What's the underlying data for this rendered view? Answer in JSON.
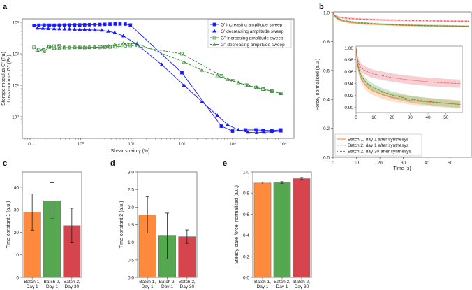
{
  "chart_data": [
    {
      "panel": "a",
      "type": "line",
      "xscale": "log",
      "yscale": "log",
      "xlabel": "Shear strain γ (%)",
      "ylabel": [
        "Storage modulus G' (Pa)",
        "Loss modulus G'' (Pa)"
      ],
      "xlim": [
        0.07,
        16000
      ],
      "ylim": [
        0.2,
        1300
      ],
      "xticks": [
        0.1,
        1,
        10,
        100,
        1000,
        10000
      ],
      "xtick_labels": [
        "10⁻¹",
        "10⁰",
        "10¹",
        "10²",
        "10³",
        "10⁴"
      ],
      "yticks": [
        1,
        10,
        100,
        1000
      ],
      "ytick_labels": [
        "10⁰",
        "10¹",
        "10²",
        "10³"
      ],
      "legend_position": "top-right",
      "series": [
        {
          "name": "G' increasing amplitude sweep",
          "color": "#1a1aff",
          "marker": "square-filled",
          "dash": "solid",
          "x": [
            0.12,
            0.15,
            0.19,
            0.24,
            0.3,
            0.38,
            0.48,
            0.6,
            0.76,
            0.96,
            1.2,
            1.5,
            1.9,
            2.4,
            3,
            3.8,
            4.8,
            6,
            7.6,
            9.6,
            100,
            600,
            1000,
            1800,
            2900,
            4000,
            6000,
            9000
          ],
          "y": [
            800,
            810,
            820,
            810,
            810,
            815,
            820,
            825,
            830,
            830,
            835,
            840,
            845,
            855,
            865,
            875,
            885,
            885,
            880,
            820,
            25,
            0.5,
            0.35,
            0.38,
            0.38,
            0.37,
            0.36,
            0.38
          ]
        },
        {
          "name": "G' decreasing amplitude sweep",
          "color": "#1a1aff",
          "marker": "triangle-filled",
          "dash": "solid",
          "x": [
            0.14,
            0.18,
            0.23,
            0.3,
            0.38,
            0.48,
            0.6,
            0.76,
            0.96,
            1.2,
            1.5,
            1.9,
            2.6,
            3.5,
            4.7,
            7,
            13,
            40,
            110,
            250,
            500,
            800,
            1300,
            2000,
            3000,
            4200,
            6000,
            9000
          ],
          "y": [
            650,
            640,
            630,
            625,
            620,
            615,
            610,
            600,
            595,
            590,
            575,
            570,
            560,
            520,
            470,
            370,
            200,
            45,
            10,
            3,
            1.1,
            0.55,
            0.38,
            0.32,
            0.31,
            0.32,
            0.33,
            0.35
          ]
        },
        {
          "name": "G'' increasing amplitude sweep",
          "color": "#2e8b2e",
          "marker": "square-open",
          "dash": "dashed",
          "x": [
            0.12,
            0.15,
            0.19,
            0.24,
            0.3,
            0.38,
            0.48,
            0.6,
            0.76,
            0.96,
            1.2,
            1.5,
            1.9,
            2.4,
            3,
            3.8,
            4.8,
            6,
            7.6,
            9.6,
            100,
            600,
            1000,
            1800,
            2900,
            4000,
            6000,
            9000
          ],
          "y": [
            160,
            130,
            120,
            165,
            175,
            180,
            160,
            158,
            160,
            160,
            158,
            160,
            162,
            160,
            162,
            165,
            168,
            172,
            180,
            185,
            100,
            20,
            14,
            10,
            8.5,
            7.5,
            6.5,
            5.5
          ]
        },
        {
          "name": "G'' decreasing amplitude sweep",
          "color": "#2e8b2e",
          "marker": "triangle-open",
          "dash": "dashed",
          "x": [
            0.14,
            0.18,
            0.23,
            0.3,
            0.38,
            0.48,
            0.6,
            0.76,
            0.96,
            1.2,
            1.5,
            1.9,
            2.6,
            3.5,
            4.7,
            7,
            13,
            110,
            250,
            500,
            800,
            1300,
            2000,
            3000,
            4200,
            6000,
            9000
          ],
          "y": [
            130,
            140,
            170,
            150,
            150,
            155,
            158,
            158,
            160,
            158,
            160,
            162,
            165,
            180,
            195,
            210,
            210,
            55,
            30,
            20,
            15,
            12,
            10,
            8.5,
            7.5,
            6.5,
            5.5
          ]
        }
      ]
    },
    {
      "panel": "b",
      "type": "line",
      "xlabel": "Time (s)",
      "ylabel": "Force, normalised (a.u.)",
      "xlim": [
        0,
        59
      ],
      "ylim": [
        0,
        1.0
      ],
      "xticks": [
        0,
        10,
        20,
        30,
        40,
        50
      ],
      "yticks": [
        0.0,
        0.2,
        0.4,
        0.6,
        0.8,
        1.0
      ],
      "ytick_labels": [
        "0.0",
        "0.2",
        "0.4",
        "0.6",
        "0.8",
        "1.0"
      ],
      "legend_position": "bottom-left",
      "t": [
        0,
        1,
        2,
        3,
        5,
        7,
        10,
        15,
        20,
        30,
        40,
        50,
        58
      ],
      "series": [
        {
          "name": "Batch 1, day 1 after synthesys",
          "color": "#ff7f2a",
          "dash": "solid",
          "y": [
            1.0,
            0.968,
            0.955,
            0.947,
            0.938,
            0.932,
            0.927,
            0.921,
            0.917,
            0.912,
            0.909,
            0.907,
            0.905
          ],
          "err": 0.007
        },
        {
          "name": "Batch 2, day 1 after synthesys",
          "color": "#3a9a3a",
          "dash": "dashed",
          "y": [
            1.0,
            0.972,
            0.96,
            0.953,
            0.944,
            0.938,
            0.933,
            0.926,
            0.921,
            0.914,
            0.91,
            0.907,
            0.905
          ],
          "err": 0.006
        },
        {
          "name": "Batch 2, day 30 after synthesys",
          "color": "#e0404a",
          "dash": "dotted",
          "y": [
            1.0,
            0.978,
            0.97,
            0.966,
            0.962,
            0.959,
            0.956,
            0.953,
            0.95,
            0.946,
            0.943,
            0.941,
            0.94
          ],
          "err": 0.007
        }
      ],
      "inset": {
        "xlim": [
          0,
          59
        ],
        "ylim": [
          0.8915,
          1.003
        ],
        "xticks": [
          0,
          10,
          20,
          30,
          40,
          50
        ],
        "yticks": [
          0.9,
          0.92,
          0.94,
          0.96,
          0.98,
          1.0
        ],
        "ytick_labels": [
          "0.90",
          "0.92",
          "0.94",
          "0.96",
          "0.98",
          "1.00"
        ]
      }
    },
    {
      "panel": "c",
      "type": "bar",
      "categories": [
        [
          "Batch 1,",
          "Day 1"
        ],
        [
          "Batch 2,",
          "Day 1"
        ],
        [
          "Batch 2,",
          "Day 30"
        ]
      ],
      "values": [
        29,
        34,
        23
      ],
      "errors": [
        8,
        8,
        7.7
      ],
      "colors": [
        "#ff8a3d",
        "#55a84f",
        "#d6454d"
      ],
      "ylabel": "Time constant 1 (a.u.)",
      "ylim": [
        0,
        46.8
      ],
      "yticks": [
        0,
        10,
        20,
        30,
        40
      ],
      "ytick_labels": [
        "0",
        "10",
        "20",
        "30",
        "40"
      ]
    },
    {
      "panel": "d",
      "type": "bar",
      "categories": [
        [
          "Batch 1,",
          "Day 1"
        ],
        [
          "Batch 2,",
          "Day 1"
        ],
        [
          "Batch 2,",
          "Day 30"
        ]
      ],
      "values": [
        1.78,
        1.18,
        1.16
      ],
      "errors": [
        0.52,
        0.65,
        0.19
      ],
      "colors": [
        "#ff8a3d",
        "#55a84f",
        "#d6454d"
      ],
      "ylabel": "Time constant 2 (a.u.)",
      "ylim": [
        0,
        3.0
      ],
      "yticks": [
        0,
        0.5,
        1.0,
        1.5,
        2.0,
        2.5,
        3.0
      ],
      "ytick_labels": [
        "0.0",
        "0.5",
        "1.0",
        "1.5",
        "2.0",
        "2.5",
        "3.0"
      ]
    },
    {
      "panel": "e",
      "type": "bar",
      "categories": [
        [
          "Batch 1,",
          "Day 1"
        ],
        [
          "Batch 2,",
          "Day 1"
        ],
        [
          "Batch 2,",
          "Day 30"
        ]
      ],
      "values": [
        0.895,
        0.898,
        0.937
      ],
      "errors": [
        0.01,
        0.01,
        0.01
      ],
      "colors": [
        "#ff8a3d",
        "#55a84f",
        "#d6454d"
      ],
      "ylabel": "Steady state force, normalised (a.u.)",
      "ylim": [
        0,
        1.0
      ],
      "yticks": [
        0,
        0.2,
        0.4,
        0.6,
        0.8,
        1.0
      ],
      "ytick_labels": [
        "0.0",
        "0.2",
        "0.4",
        "0.6",
        "0.8",
        "1.0"
      ]
    }
  ]
}
